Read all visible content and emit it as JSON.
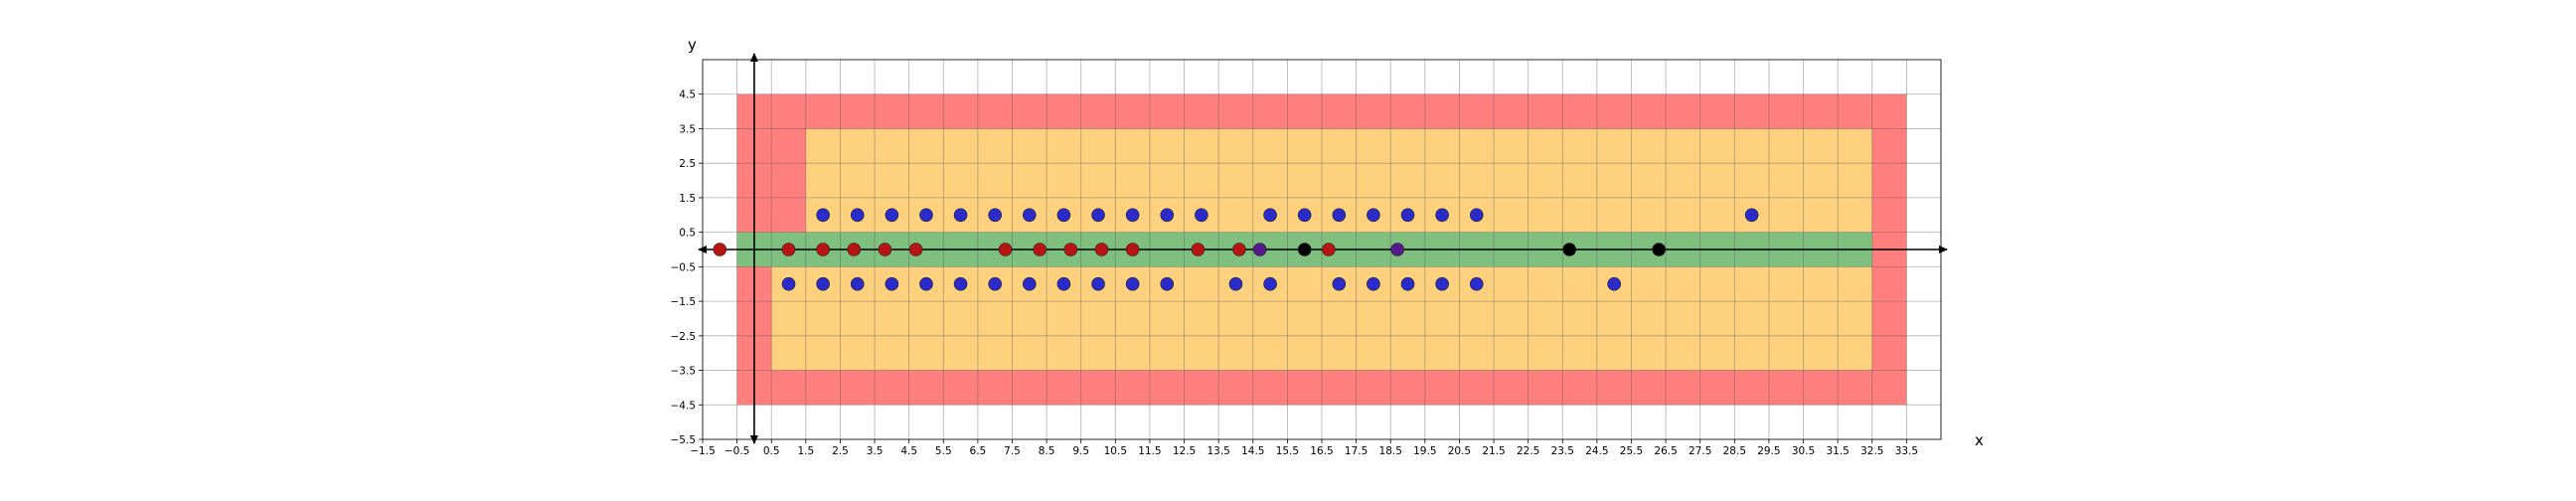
{
  "chart_data": {
    "type": "scatter",
    "xlabel": "x",
    "ylabel": "y",
    "xlim": [
      -1.5,
      34.5
    ],
    "ylim": [
      -5.5,
      5.5
    ],
    "x_ticks": [
      "−1.5",
      "−0.5",
      "0.5",
      "1.5",
      "2.5",
      "3.5",
      "4.5",
      "5.5",
      "6.5",
      "7.5",
      "8.5",
      "9.5",
      "10.5",
      "11.5",
      "12.5",
      "13.5",
      "14.5",
      "15.5",
      "16.5",
      "17.5",
      "18.5",
      "19.5",
      "20.5",
      "21.5",
      "22.5",
      "23.5",
      "24.5",
      "25.5",
      "26.5",
      "27.5",
      "28.5",
      "29.5",
      "30.5",
      "31.5",
      "32.5",
      "33.5"
    ],
    "x_tick_values": [
      -1.5,
      -0.5,
      0.5,
      1.5,
      2.5,
      3.5,
      4.5,
      5.5,
      6.5,
      7.5,
      8.5,
      9.5,
      10.5,
      11.5,
      12.5,
      13.5,
      14.5,
      15.5,
      16.5,
      17.5,
      18.5,
      19.5,
      20.5,
      21.5,
      22.5,
      23.5,
      24.5,
      25.5,
      26.5,
      27.5,
      28.5,
      29.5,
      30.5,
      31.5,
      32.5,
      33.5
    ],
    "y_ticks": [
      "4.5",
      "3.5",
      "2.5",
      "1.5",
      "0.5",
      "−0.5",
      "−1.5",
      "−2.5",
      "−3.5",
      "−4.5",
      "−5.5"
    ],
    "y_tick_values": [
      4.5,
      3.5,
      2.5,
      1.5,
      0.5,
      -0.5,
      -1.5,
      -2.5,
      -3.5,
      -4.5,
      -5.5
    ],
    "grid": true,
    "regions": [
      {
        "color": "#ff7f7f",
        "polygon": [
          [
            -0.5,
            -4.5
          ],
          [
            33.5,
            -4.5
          ],
          [
            33.5,
            4.5
          ],
          [
            -0.5,
            4.5
          ]
        ]
      },
      {
        "color": "#fed17f",
        "polygon": [
          [
            0.5,
            -3.5
          ],
          [
            32.5,
            -3.5
          ],
          [
            32.5,
            3.5
          ],
          [
            1.5,
            3.5
          ],
          [
            1.5,
            0.5
          ],
          [
            0.5,
            0.5
          ]
        ]
      },
      {
        "color": "#7fbf7f",
        "polygon": [
          [
            -0.5,
            -0.5
          ],
          [
            32.5,
            -0.5
          ],
          [
            32.5,
            0.5
          ],
          [
            -0.5,
            0.5
          ]
        ]
      }
    ],
    "series": [
      {
        "color": "#2b2bcc",
        "points": [
          [
            2,
            1
          ],
          [
            3,
            1
          ],
          [
            4,
            1
          ],
          [
            5,
            1
          ],
          [
            6,
            1
          ],
          [
            7,
            1
          ],
          [
            8,
            1
          ],
          [
            9,
            1
          ],
          [
            10,
            1
          ],
          [
            11,
            1
          ],
          [
            12,
            1
          ],
          [
            13,
            1
          ],
          [
            15,
            1
          ],
          [
            16,
            1
          ],
          [
            17,
            1
          ],
          [
            18,
            1
          ],
          [
            19,
            1
          ],
          [
            20,
            1
          ],
          [
            21,
            1
          ],
          [
            29,
            1
          ],
          [
            1,
            -1
          ],
          [
            2,
            -1
          ],
          [
            3,
            -1
          ],
          [
            4,
            -1
          ],
          [
            5,
            -1
          ],
          [
            6,
            -1
          ],
          [
            7,
            -1
          ],
          [
            8,
            -1
          ],
          [
            9,
            -1
          ],
          [
            10,
            -1
          ],
          [
            11,
            -1
          ],
          [
            12,
            -1
          ],
          [
            14,
            -1
          ],
          [
            15,
            -1
          ],
          [
            17,
            -1
          ],
          [
            18,
            -1
          ],
          [
            19,
            -1
          ],
          [
            20,
            -1
          ],
          [
            21,
            -1
          ],
          [
            25,
            -1
          ]
        ]
      },
      {
        "color": "#b81414",
        "points": [
          [
            -1,
            0
          ],
          [
            1,
            0
          ],
          [
            2,
            0
          ],
          [
            2.9,
            0
          ],
          [
            3.8,
            0
          ],
          [
            4.7,
            0
          ],
          [
            7.3,
            0
          ],
          [
            8.3,
            0
          ],
          [
            9.2,
            0
          ],
          [
            10.1,
            0
          ],
          [
            11.0,
            0
          ],
          [
            12.9,
            0
          ],
          [
            14.1,
            0
          ],
          [
            16.7,
            0
          ]
        ]
      },
      {
        "color": "#551a8b",
        "points": [
          [
            14.7,
            0
          ],
          [
            18.7,
            0
          ]
        ]
      },
      {
        "color": "#000000",
        "points": [
          [
            16.0,
            0
          ],
          [
            23.7,
            0
          ],
          [
            26.3,
            0
          ]
        ]
      }
    ]
  }
}
